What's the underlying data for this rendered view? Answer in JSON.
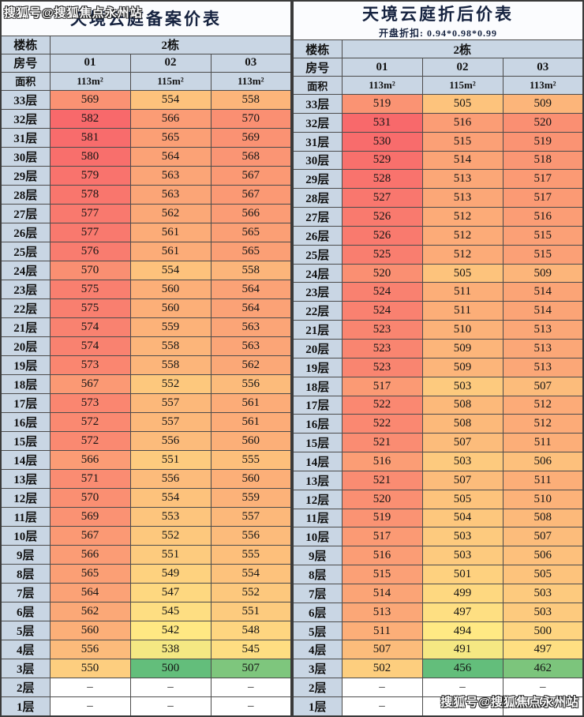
{
  "watermarks": {
    "top": "搜狐号@搜狐焦点永州站",
    "bottom": "搜狐号@搜狐焦点永州站"
  },
  "labels": {
    "building": "楼栋",
    "room": "房号",
    "area": "面积"
  },
  "chart_data": [
    {
      "type": "heatmap",
      "title": "天境云庭备案价表",
      "subtitle": "",
      "building": "2栋",
      "columns": [
        "01",
        "02",
        "03"
      ],
      "areas": [
        "113m²",
        "115m²",
        "113m²"
      ],
      "null_display": "–",
      "color_scale": {
        "min_color": "#63BE7B",
        "mid_color": "#FFEB84",
        "max_color": "#F8696B"
      },
      "floors": [
        "33层",
        "32层",
        "31层",
        "30层",
        "29层",
        "28层",
        "27层",
        "26层",
        "25层",
        "24层",
        "23层",
        "22层",
        "21层",
        "20层",
        "19层",
        "18层",
        "17层",
        "16层",
        "15层",
        "14层",
        "13层",
        "12层",
        "11层",
        "10层",
        "9层",
        "8层",
        "7层",
        "6层",
        "5层",
        "4层",
        "3层",
        "2层",
        "1层"
      ],
      "values": [
        [
          569,
          554,
          558
        ],
        [
          582,
          566,
          570
        ],
        [
          581,
          565,
          569
        ],
        [
          580,
          564,
          568
        ],
        [
          579,
          563,
          567
        ],
        [
          578,
          563,
          567
        ],
        [
          577,
          562,
          566
        ],
        [
          577,
          561,
          565
        ],
        [
          576,
          561,
          565
        ],
        [
          570,
          554,
          558
        ],
        [
          575,
          560,
          564
        ],
        [
          575,
          560,
          564
        ],
        [
          574,
          559,
          563
        ],
        [
          574,
          558,
          563
        ],
        [
          573,
          558,
          562
        ],
        [
          567,
          552,
          556
        ],
        [
          573,
          557,
          561
        ],
        [
          572,
          557,
          561
        ],
        [
          572,
          556,
          560
        ],
        [
          566,
          551,
          555
        ],
        [
          571,
          556,
          560
        ],
        [
          570,
          554,
          559
        ],
        [
          569,
          553,
          557
        ],
        [
          567,
          552,
          556
        ],
        [
          566,
          551,
          555
        ],
        [
          565,
          549,
          554
        ],
        [
          564,
          547,
          552
        ],
        [
          562,
          545,
          551
        ],
        [
          560,
          542,
          548
        ],
        [
          556,
          538,
          545
        ],
        [
          550,
          500,
          507
        ],
        [
          null,
          null,
          null
        ],
        [
          null,
          null,
          null
        ]
      ]
    },
    {
      "type": "heatmap",
      "title": "天境云庭折后价表",
      "subtitle": "开盘折扣: 0.94*0.98*0.99",
      "building": "2栋",
      "columns": [
        "01",
        "02",
        "03"
      ],
      "areas": [
        "113m²",
        "115m²",
        "113m²"
      ],
      "null_display": "–",
      "color_scale": {
        "min_color": "#63BE7B",
        "mid_color": "#FFEB84",
        "max_color": "#F8696B"
      },
      "floors": [
        "33层",
        "32层",
        "31层",
        "30层",
        "29层",
        "28层",
        "27层",
        "26层",
        "25层",
        "24层",
        "23层",
        "22层",
        "21层",
        "20层",
        "19层",
        "18层",
        "17层",
        "16层",
        "15层",
        "14层",
        "13层",
        "12层",
        "11层",
        "10层",
        "9层",
        "8层",
        "7层",
        "6层",
        "5层",
        "4层",
        "3层",
        "2层",
        "1层"
      ],
      "values": [
        [
          519,
          505,
          509
        ],
        [
          531,
          516,
          520
        ],
        [
          530,
          515,
          519
        ],
        [
          529,
          514,
          518
        ],
        [
          528,
          513,
          517
        ],
        [
          527,
          513,
          517
        ],
        [
          526,
          512,
          516
        ],
        [
          526,
          512,
          515
        ],
        [
          525,
          512,
          515
        ],
        [
          520,
          505,
          509
        ],
        [
          524,
          511,
          514
        ],
        [
          524,
          511,
          514
        ],
        [
          523,
          510,
          513
        ],
        [
          523,
          509,
          513
        ],
        [
          523,
          509,
          513
        ],
        [
          517,
          503,
          507
        ],
        [
          522,
          508,
          512
        ],
        [
          522,
          508,
          512
        ],
        [
          521,
          507,
          511
        ],
        [
          516,
          503,
          506
        ],
        [
          521,
          507,
          511
        ],
        [
          520,
          505,
          510
        ],
        [
          519,
          504,
          508
        ],
        [
          517,
          503,
          507
        ],
        [
          516,
          503,
          506
        ],
        [
          515,
          501,
          505
        ],
        [
          514,
          499,
          503
        ],
        [
          513,
          497,
          503
        ],
        [
          511,
          494,
          500
        ],
        [
          507,
          491,
          497
        ],
        [
          502,
          456,
          462
        ],
        [
          null,
          null,
          null
        ],
        [
          null,
          null,
          null
        ]
      ]
    }
  ]
}
